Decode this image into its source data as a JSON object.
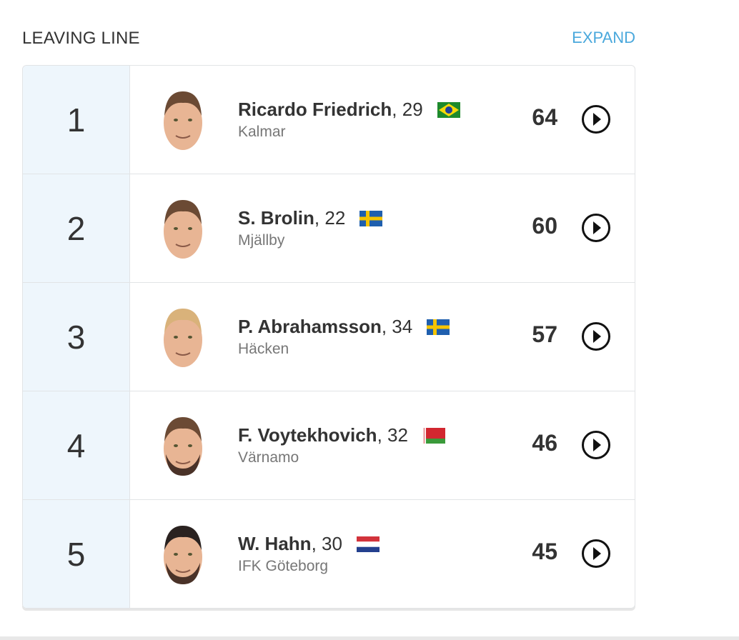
{
  "header": {
    "title": "LEAVING LINE",
    "expand_label": "EXPAND"
  },
  "colors": {
    "accent": "#4aa8dc",
    "rank_bg": "#eef6fc"
  },
  "players": [
    {
      "rank": "1",
      "name": "Ricardo Friedrich",
      "age": ", 29",
      "flag": "brazil-flag-icon",
      "team": "Kalmar",
      "score": "64"
    },
    {
      "rank": "2",
      "name": "S. Brolin",
      "age": ", 22",
      "flag": "sweden-flag-icon",
      "team": "Mjällby",
      "score": "60"
    },
    {
      "rank": "3",
      "name": "P. Abrahamsson",
      "age": ", 34",
      "flag": "sweden-flag-icon",
      "team": "Häcken",
      "score": "57"
    },
    {
      "rank": "4",
      "name": "F. Voytekhovich",
      "age": ", 32",
      "flag": "belarus-flag-icon",
      "team": "Värnamo",
      "score": "46"
    },
    {
      "rank": "5",
      "name": "W. Hahn",
      "age": ", 30",
      "flag": "netherlands-flag-icon",
      "team": "IFK Göteborg",
      "score": "45"
    }
  ]
}
